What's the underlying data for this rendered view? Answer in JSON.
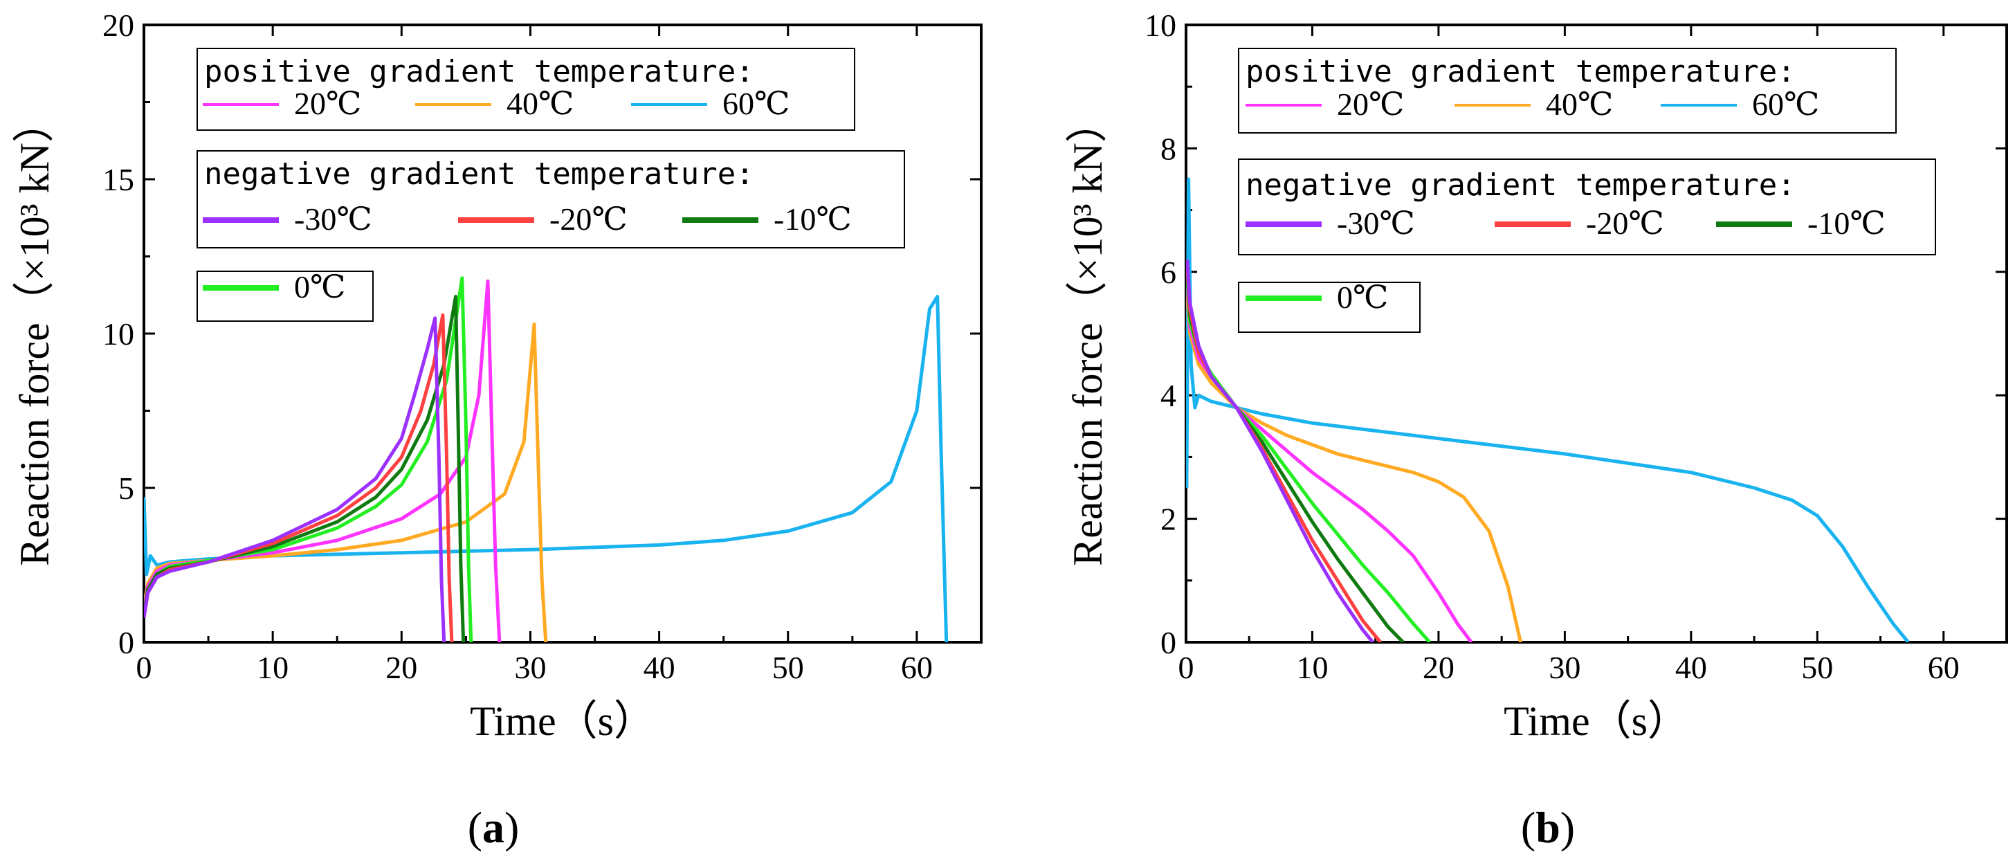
{
  "chart_data": [
    {
      "type": "line",
      "panel": "(a)",
      "xlabel": "Time（s）",
      "ylabel": "Reaction force（×10³ kN）",
      "xlim": [
        0,
        65
      ],
      "ylim": [
        0,
        20
      ],
      "xticks": [
        0,
        10,
        20,
        30,
        40,
        50,
        60
      ],
      "yticks": [
        0,
        5,
        10,
        15,
        20
      ],
      "legend_groups": [
        {
          "title": "positive gradient temperature:",
          "entries": [
            "20℃",
            "40℃",
            "60℃"
          ]
        },
        {
          "title": "negative gradient temperature:",
          "entries": [
            "-30℃",
            "-20℃",
            "-10℃"
          ]
        },
        {
          "title": "",
          "entries": [
            "0℃"
          ]
        }
      ],
      "series": [
        {
          "name": "-30℃",
          "color": "#9b30ff",
          "x": [
            0,
            0.3,
            1,
            2,
            5,
            10,
            15,
            18,
            20,
            21,
            22,
            22.6,
            22.9,
            23.1,
            23.3
          ],
          "y": [
            0.8,
            1.6,
            2.1,
            2.3,
            2.6,
            3.3,
            4.3,
            5.3,
            6.6,
            8.0,
            9.5,
            10.5,
            6.0,
            2.0,
            0
          ]
        },
        {
          "name": "-20℃",
          "color": "#ff4040",
          "x": [
            0,
            0.3,
            1,
            2,
            5,
            10,
            15,
            18,
            20,
            21.5,
            22.5,
            23.2,
            23.5,
            23.7,
            23.9
          ],
          "y": [
            0.8,
            1.6,
            2.1,
            2.35,
            2.6,
            3.2,
            4.1,
            5.0,
            6.0,
            7.5,
            9.0,
            10.6,
            6.0,
            2.0,
            0
          ]
        },
        {
          "name": "-10℃",
          "color": "#0f7a0f",
          "x": [
            0,
            0.3,
            1,
            2,
            5,
            10,
            15,
            18,
            20,
            22,
            23.3,
            24.2,
            24.4,
            24.6,
            24.8
          ],
          "y": [
            0.9,
            1.7,
            2.2,
            2.4,
            2.6,
            3.1,
            3.9,
            4.7,
            5.6,
            7.2,
            9.0,
            11.2,
            7.0,
            2.5,
            0
          ]
        },
        {
          "name": "0℃",
          "color": "#22ee22",
          "x": [
            0,
            0.3,
            1,
            2,
            5,
            10,
            15,
            18,
            20,
            22,
            23.5,
            24.7,
            25.0,
            25.2,
            25.4
          ],
          "y": [
            0.9,
            1.7,
            2.2,
            2.45,
            2.65,
            3.0,
            3.7,
            4.4,
            5.1,
            6.5,
            8.5,
            11.8,
            7.0,
            2.5,
            0
          ]
        },
        {
          "name": "20℃",
          "color": "#ff33ff",
          "x": [
            0,
            0.3,
            1,
            2,
            5,
            10,
            15,
            20,
            23,
            25,
            26,
            26.7,
            27.0,
            27.3,
            27.6
          ],
          "y": [
            1.0,
            1.8,
            2.3,
            2.5,
            2.65,
            2.9,
            3.3,
            4.0,
            4.8,
            6.0,
            8.0,
            11.7,
            7.0,
            2.5,
            0
          ]
        },
        {
          "name": "40℃",
          "color": "#ffaa22",
          "x": [
            0,
            0.3,
            1,
            2,
            5,
            10,
            15,
            20,
            25,
            28,
            29.5,
            30.3,
            30.6,
            30.9,
            31.2
          ],
          "y": [
            1.2,
            1.9,
            2.4,
            2.55,
            2.65,
            2.8,
            3.0,
            3.3,
            3.9,
            4.8,
            6.5,
            10.3,
            6.0,
            2.0,
            0
          ]
        },
        {
          "name": "60℃",
          "color": "#19b3f0",
          "x": [
            0,
            0.2,
            0.5,
            1,
            2,
            5,
            10,
            20,
            30,
            40,
            45,
            50,
            55,
            58,
            60,
            61,
            61.6,
            61.9,
            62.3
          ],
          "y": [
            4.7,
            2.2,
            2.8,
            2.5,
            2.6,
            2.7,
            2.8,
            2.9,
            3.0,
            3.15,
            3.3,
            3.6,
            4.2,
            5.2,
            7.5,
            10.8,
            11.2,
            6.0,
            0
          ]
        }
      ]
    },
    {
      "type": "line",
      "panel": "(b)",
      "xlabel": "Time（s）",
      "ylabel": "Reaction force（×10³ kN）",
      "xlim": [
        0,
        65
      ],
      "ylim": [
        0,
        10
      ],
      "xticks": [
        0,
        10,
        20,
        30,
        40,
        50,
        60
      ],
      "yticks": [
        0,
        2,
        4,
        6,
        8,
        10
      ],
      "legend_groups": [
        {
          "title": "positive gradient temperature:",
          "entries": [
            "20℃",
            "40℃",
            "60℃"
          ]
        },
        {
          "title": "negative gradient temperature:",
          "entries": [
            "-30℃",
            "-20℃",
            "-10℃"
          ]
        },
        {
          "title": "",
          "entries": [
            "0℃"
          ]
        }
      ],
      "series": [
        {
          "name": "-30℃",
          "color": "#9b30ff",
          "x": [
            0.1,
            0.3,
            1,
            2,
            4,
            6,
            8,
            10,
            12,
            14,
            14.8
          ],
          "y": [
            6.2,
            5.5,
            4.8,
            4.3,
            3.8,
            3.1,
            2.3,
            1.5,
            0.8,
            0.2,
            0
          ]
        },
        {
          "name": "-20℃",
          "color": "#ff4040",
          "x": [
            0.1,
            0.3,
            1,
            2,
            4,
            6,
            8,
            10,
            12,
            14,
            15.4
          ],
          "y": [
            6.1,
            5.4,
            4.7,
            4.3,
            3.8,
            3.15,
            2.4,
            1.65,
            1.0,
            0.35,
            0
          ]
        },
        {
          "name": "-10℃",
          "color": "#0f7a0f",
          "x": [
            0.1,
            0.3,
            1,
            2,
            4,
            6,
            8,
            10,
            12,
            14,
            16,
            17.2
          ],
          "y": [
            6.0,
            5.3,
            4.7,
            4.3,
            3.8,
            3.25,
            2.6,
            1.95,
            1.35,
            0.8,
            0.25,
            0
          ]
        },
        {
          "name": "0℃",
          "color": "#22ee22",
          "x": [
            0.1,
            0.3,
            1,
            2,
            4,
            6,
            8,
            10,
            12,
            14,
            16,
            18,
            19.3
          ],
          "y": [
            5.9,
            5.2,
            4.7,
            4.35,
            3.8,
            3.35,
            2.8,
            2.25,
            1.75,
            1.25,
            0.8,
            0.3,
            0
          ]
        },
        {
          "name": "20℃",
          "color": "#ff33ff",
          "x": [
            0.1,
            0.3,
            1,
            2,
            4,
            6,
            8,
            10,
            12,
            14,
            16,
            18,
            20,
            21.5,
            22.6
          ],
          "y": [
            5.8,
            5.1,
            4.6,
            4.3,
            3.8,
            3.45,
            3.1,
            2.75,
            2.45,
            2.15,
            1.8,
            1.4,
            0.8,
            0.3,
            0
          ]
        },
        {
          "name": "40℃",
          "color": "#ffaa22",
          "x": [
            0.1,
            0.3,
            1,
            2,
            4,
            6,
            8,
            10,
            12,
            14,
            16,
            18,
            20,
            22,
            24,
            25.5,
            26.5
          ],
          "y": [
            5.6,
            5.0,
            4.5,
            4.2,
            3.8,
            3.55,
            3.35,
            3.2,
            3.05,
            2.95,
            2.85,
            2.75,
            2.6,
            2.35,
            1.8,
            0.9,
            0
          ]
        },
        {
          "name": "60℃",
          "color": "#19b3f0",
          "x": [
            0.05,
            0.2,
            0.4,
            0.7,
            1,
            2,
            4,
            6,
            10,
            20,
            30,
            40,
            45,
            48,
            50,
            52,
            54,
            56,
            57.2
          ],
          "y": [
            2.5,
            7.5,
            4.5,
            3.8,
            4.0,
            3.9,
            3.8,
            3.7,
            3.55,
            3.3,
            3.05,
            2.75,
            2.5,
            2.3,
            2.05,
            1.55,
            0.9,
            0.3,
            0
          ]
        }
      ]
    }
  ]
}
